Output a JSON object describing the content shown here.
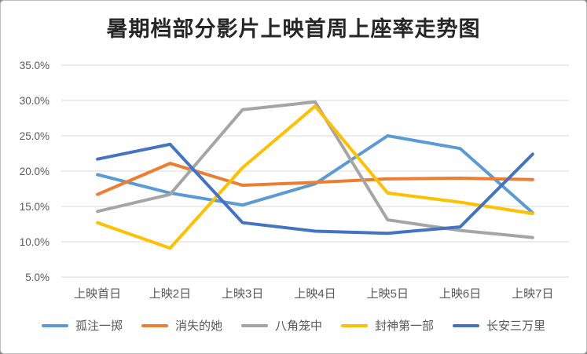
{
  "chart_data": {
    "type": "line",
    "title": "暑期档部分影片上映首周上座率走势图",
    "categories": [
      "上映首日",
      "上映2日",
      "上映3日",
      "上映4日",
      "上映5日",
      "上映6日",
      "上映7日"
    ],
    "series": [
      {
        "name": "孤注一掷",
        "color": "#5B9BD5",
        "values": [
          19.5,
          16.9,
          15.2,
          18.2,
          25.0,
          23.2,
          14.1
        ]
      },
      {
        "name": "消失的她",
        "color": "#ED7D31",
        "values": [
          16.7,
          21.1,
          18.0,
          18.4,
          18.9,
          19.0,
          18.8
        ]
      },
      {
        "name": "八角笼中",
        "color": "#A5A5A5",
        "values": [
          14.3,
          16.7,
          28.7,
          29.8,
          13.1,
          11.6,
          10.6
        ]
      },
      {
        "name": "封神第一部",
        "color": "#FFC000",
        "values": [
          12.7,
          9.1,
          20.5,
          29.2,
          16.9,
          15.6,
          14.0
        ]
      },
      {
        "name": "长安三万里",
        "color": "#4472C4",
        "values": [
          21.7,
          23.8,
          12.7,
          11.5,
          11.2,
          12.1,
          22.4
        ]
      }
    ],
    "y_axis": {
      "min": 5,
      "max": 35,
      "step": 5,
      "tick_labels": [
        "5.0%",
        "10.0%",
        "15.0%",
        "20.0%",
        "25.0%",
        "30.0%",
        "35.0%"
      ]
    },
    "grid": "horizontal",
    "legend_position": "bottom",
    "colors": {
      "gridline": "#D9D9D9",
      "axis_text": "#595959",
      "title_text": "#262626",
      "background": "#FFFFFF",
      "frame_border": "#BFBFBF"
    }
  }
}
